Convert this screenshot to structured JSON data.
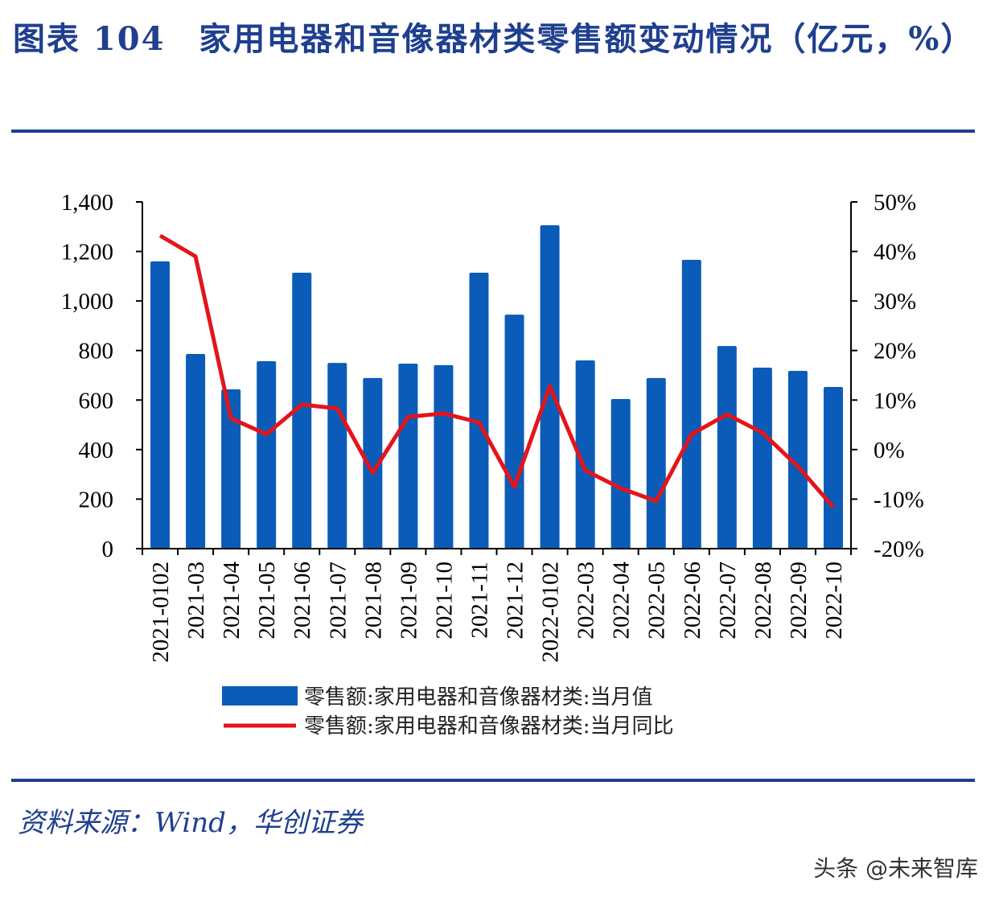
{
  "title": "图表 104　家用电器和音像器材类零售额变动情况（亿元，%）",
  "source": "资料来源：Wind，华创证券",
  "watermark": "头条 @未来智库",
  "chart_data": {
    "type": "bar+line",
    "categories": [
      "2021-0102",
      "2021-03",
      "2021-04",
      "2021-05",
      "2021-06",
      "2021-07",
      "2021-08",
      "2021-09",
      "2021-10",
      "2021-11",
      "2021-12",
      "2022-0102",
      "2022-03",
      "2022-04",
      "2022-05",
      "2022-06",
      "2022-07",
      "2022-08",
      "2022-09",
      "2022-10"
    ],
    "series": [
      {
        "name": "零售额:家用电器和音像器材类:当月值",
        "type": "bar",
        "axis": "left",
        "color": "#0a5cb8",
        "values": [
          1160,
          786,
          643,
          757,
          1114,
          750,
          689,
          747,
          741,
          1114,
          945,
          1306,
          760,
          604,
          689,
          1166,
          818,
          731,
          718,
          653
        ]
      },
      {
        "name": "零售额:家用电器和音像器材类:当月同比",
        "type": "line",
        "axis": "right",
        "color": "#e3151b",
        "values": [
          43.2,
          39.0,
          6.3,
          3.1,
          9.1,
          8.3,
          -4.7,
          6.6,
          7.3,
          5.5,
          -7.5,
          12.8,
          -4.2,
          -7.8,
          -10.4,
          3.1,
          7.1,
          3.4,
          -3.4,
          -11.6
        ]
      }
    ],
    "left_axis": {
      "range": [
        0,
        1400
      ],
      "ticks": [
        "0",
        "200",
        "400",
        "600",
        "800",
        "1,000",
        "1,200",
        "1,400"
      ]
    },
    "right_axis": {
      "range": [
        -20,
        50
      ],
      "ticks": [
        "-20%",
        "-10%",
        "0%",
        "10%",
        "20%",
        "30%",
        "40%",
        "50%"
      ]
    },
    "grid": false,
    "legend": "bottom"
  }
}
